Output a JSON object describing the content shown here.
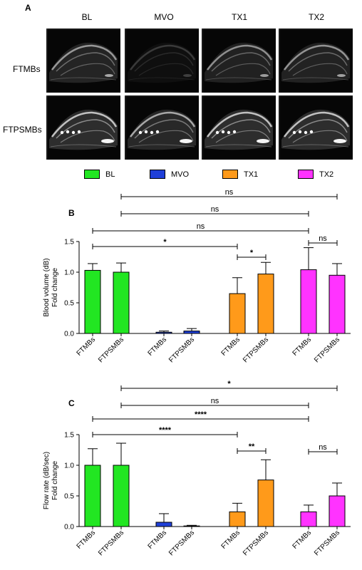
{
  "panel_a": {
    "letter": "A",
    "columns": [
      "BL",
      "MVO",
      "TX1",
      "TX2"
    ],
    "rows": [
      "FTMBs",
      "FTPSMBs"
    ]
  },
  "legend": [
    {
      "label": "BL",
      "color": "#22e622"
    },
    {
      "label": "MVO",
      "color": "#1f3fd8"
    },
    {
      "label": "TX1",
      "color": "#ff9a1a"
    },
    {
      "label": "TX2",
      "color": "#ff33ff"
    }
  ],
  "chart_data": [
    {
      "panel": "B",
      "type": "bar",
      "ylabel": [
        "Blood volume (dB)",
        "Fold change"
      ],
      "ylim": [
        0,
        1.5
      ],
      "yticks": [
        "0.0",
        "0.5",
        "1.0",
        "1.5"
      ],
      "categories": [
        "FTMBs",
        "FTPSMBs",
        "FTMBs",
        "FTPSMBs",
        "FTMBs",
        "FTPSMBs",
        "FTMBs",
        "FTPSMBs"
      ],
      "groups": [
        "BL",
        "BL",
        "MVO",
        "MVO",
        "TX1",
        "TX1",
        "TX2",
        "TX2"
      ],
      "values": [
        1.03,
        1.0,
        0.02,
        0.04,
        0.65,
        0.97,
        1.04,
        0.95
      ],
      "errors": [
        0.11,
        0.15,
        0.02,
        0.04,
        0.26,
        0.19,
        0.36,
        0.19
      ],
      "comparisons": [
        {
          "from": 1,
          "to": 7,
          "label": "ns"
        },
        {
          "from": 1,
          "to": 6,
          "label": "ns"
        },
        {
          "from": 0,
          "to": 6,
          "label": "ns"
        },
        {
          "from": 0,
          "to": 4,
          "label": "*"
        },
        {
          "from": 4,
          "to": 5,
          "label": "*"
        },
        {
          "from": 6,
          "to": 7,
          "label": "ns"
        }
      ]
    },
    {
      "panel": "C",
      "type": "bar",
      "ylabel": [
        "Flow rate (dB/sec)",
        "Fold change"
      ],
      "ylim": [
        0,
        1.5
      ],
      "yticks": [
        "0.0",
        "0.5",
        "1.0",
        "1.5"
      ],
      "categories": [
        "FTMBs",
        "FTPSMBs",
        "FTMBs",
        "FTPSMBs",
        "FTMBs",
        "FTPSMBs",
        "FTMBs",
        "FTPSMBs"
      ],
      "groups": [
        "BL",
        "BL",
        "MVO",
        "MVO",
        "TX1",
        "TX1",
        "TX2",
        "TX2"
      ],
      "values": [
        1.0,
        1.0,
        0.07,
        0.01,
        0.24,
        0.76,
        0.24,
        0.5
      ],
      "errors": [
        0.27,
        0.36,
        0.14,
        0.01,
        0.14,
        0.33,
        0.11,
        0.21
      ],
      "comparisons": [
        {
          "from": 1,
          "to": 7,
          "label": "*"
        },
        {
          "from": 1,
          "to": 6,
          "label": "ns"
        },
        {
          "from": 0,
          "to": 6,
          "label": "****"
        },
        {
          "from": 0,
          "to": 4,
          "label": "****"
        },
        {
          "from": 4,
          "to": 5,
          "label": "**"
        },
        {
          "from": 6,
          "to": 7,
          "label": "ns"
        }
      ]
    }
  ]
}
